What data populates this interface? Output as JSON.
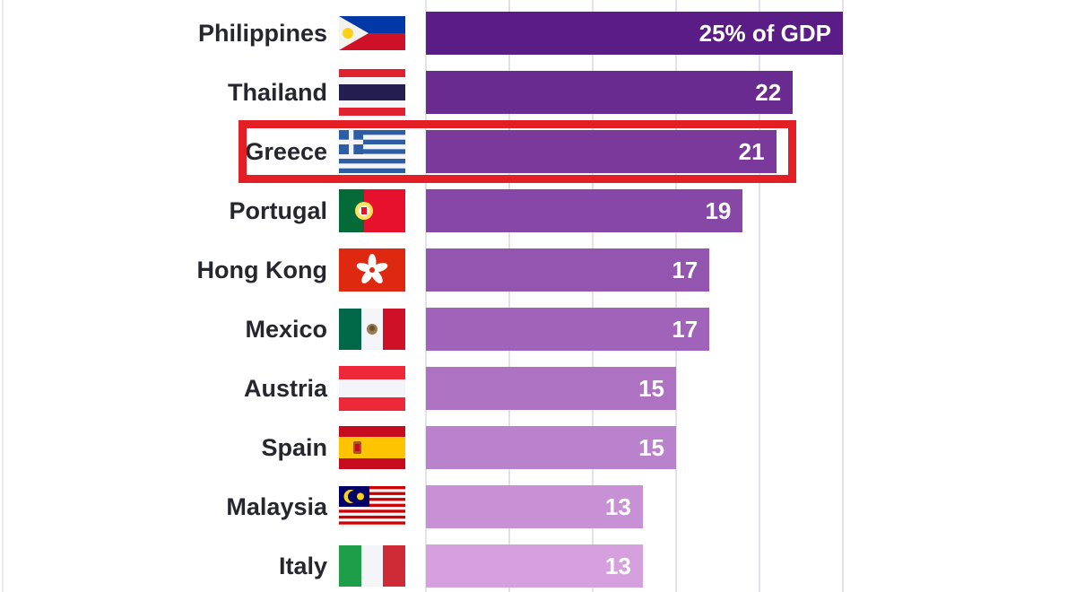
{
  "chart_data": {
    "type": "bar",
    "orientation": "horizontal",
    "title": "",
    "xlabel": "",
    "ylabel": "",
    "unit": "% of GDP",
    "xlim": [
      0,
      25
    ],
    "gridline_ticks": [
      0,
      5,
      10,
      15,
      20,
      25
    ],
    "grid": "vertical light-gray lines, labels hidden",
    "legend": "none",
    "categories": [
      "Philippines",
      "Thailand",
      "Greece",
      "Portugal",
      "Hong Kong",
      "Mexico",
      "Austria",
      "Spain",
      "Malaysia",
      "Italy"
    ],
    "values": [
      25,
      22,
      21,
      19,
      17,
      17,
      15,
      15,
      13,
      13
    ],
    "bar_labels": [
      "25% of GDP",
      "22",
      "21",
      "19",
      "17",
      "17",
      "15",
      "15",
      "13",
      "13"
    ],
    "bar_colors": [
      "#5A1D85",
      "#6A2B90",
      "#7A399B",
      "#8747A6",
      "#9355B0",
      "#A163BA",
      "#AE72C3",
      "#BA81CC",
      "#C890D5",
      "#D6A0DE"
    ],
    "highlight": {
      "category": "Greece",
      "style": "thick red rectangle around label, flag and bar",
      "box_color": "#E31E25"
    },
    "rows": [
      {
        "country": "Philippines",
        "flag": "philippines-flag-icon",
        "value": 25,
        "label": "25% of GDP",
        "color": "#5A1D85",
        "highlighted": false
      },
      {
        "country": "Thailand",
        "flag": "thailand-flag-icon",
        "value": 22,
        "label": "22",
        "color": "#6A2B90",
        "highlighted": false
      },
      {
        "country": "Greece",
        "flag": "greece-flag-icon",
        "value": 21,
        "label": "21",
        "color": "#7A399B",
        "highlighted": true
      },
      {
        "country": "Portugal",
        "flag": "portugal-flag-icon",
        "value": 19,
        "label": "19",
        "color": "#8747A6",
        "highlighted": false
      },
      {
        "country": "Hong Kong",
        "flag": "hong-kong-flag-icon",
        "value": 17,
        "label": "17",
        "color": "#9355B0",
        "highlighted": false
      },
      {
        "country": "Mexico",
        "flag": "mexico-flag-icon",
        "value": 17,
        "label": "17",
        "color": "#A163BA",
        "highlighted": false
      },
      {
        "country": "Austria",
        "flag": "austria-flag-icon",
        "value": 15,
        "label": "15",
        "color": "#AE72C3",
        "highlighted": false
      },
      {
        "country": "Spain",
        "flag": "spain-flag-icon",
        "value": 15,
        "label": "15",
        "color": "#BA81CC",
        "highlighted": false
      },
      {
        "country": "Malaysia",
        "flag": "malaysia-flag-icon",
        "value": 13,
        "label": "13",
        "color": "#C890D5",
        "highlighted": false
      },
      {
        "country": "Italy",
        "flag": "italy-flag-icon",
        "value": 13,
        "label": "13",
        "color": "#D6A0DE",
        "highlighted": false
      }
    ]
  }
}
